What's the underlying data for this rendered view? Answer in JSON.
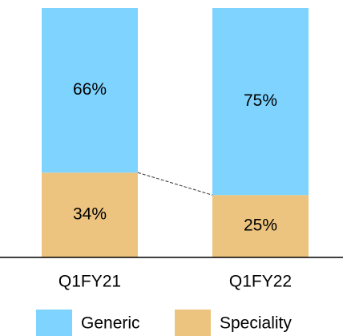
{
  "chart_data": {
    "type": "stacked_bar",
    "categories": [
      "Q1FY21",
      "Q1FY22"
    ],
    "series": [
      {
        "name": "Generic",
        "color": "#7fd4ff",
        "values": [
          66,
          75
        ],
        "value_labels": [
          "66%",
          "75%"
        ]
      },
      {
        "name": "Speciality",
        "color": "#ecc47f",
        "values": [
          34,
          25
        ],
        "value_labels": [
          "34%",
          "25%"
        ]
      }
    ]
  }
}
